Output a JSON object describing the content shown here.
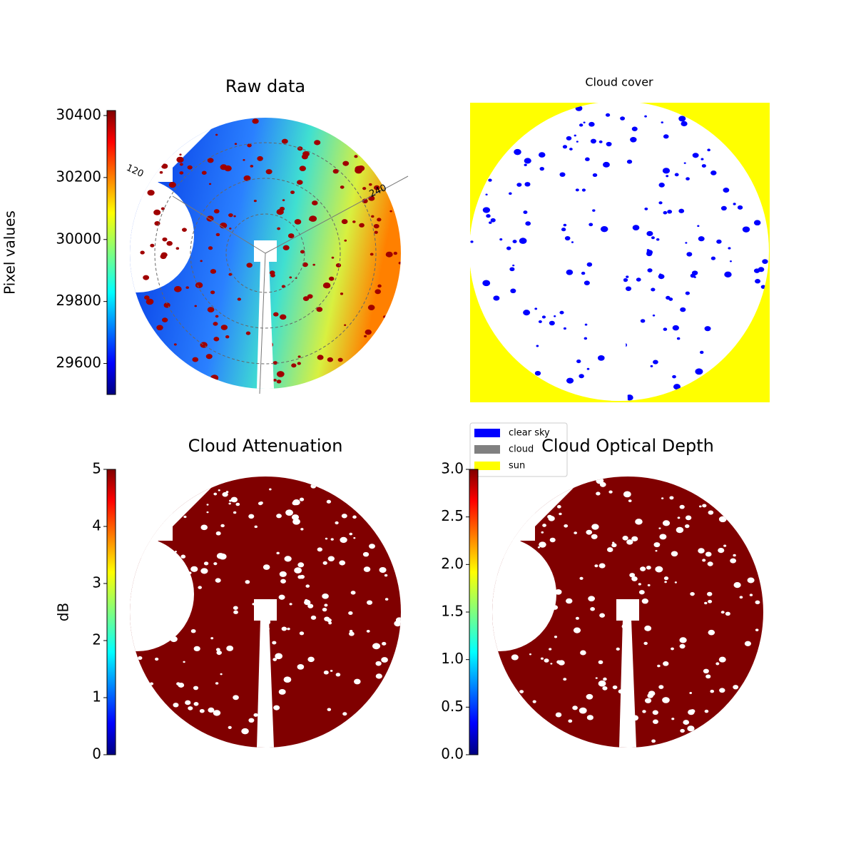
{
  "chart_data": [
    {
      "type": "image",
      "title": "Raw data",
      "colormap": "jet",
      "colorbar_label": "Pixel values",
      "clim": [
        29500,
        30416
      ],
      "cticks": [
        29600,
        29800,
        30000,
        30200,
        30400
      ],
      "annotations": [
        "120",
        "240"
      ]
    },
    {
      "type": "mask",
      "title": "Cloud cover",
      "legend_entries": [
        {
          "name": "clear sky",
          "color": "#0000ff"
        },
        {
          "name": "cloud",
          "color": "#808080"
        },
        {
          "name": "sun",
          "color": "#ffff00"
        }
      ]
    },
    {
      "type": "image",
      "title": "Cloud Attenuation",
      "colormap": "jet",
      "colorbar_label": "dB",
      "clim": [
        0,
        5
      ],
      "cticks": [
        0,
        1,
        2,
        3,
        4,
        5
      ],
      "color": "#800000"
    },
    {
      "type": "image",
      "title": "Cloud Optical Depth",
      "colormap": "jet",
      "clim": [
        0,
        3
      ],
      "cticks": [
        {
          "value": 0,
          "label": "0.0"
        },
        {
          "value": 0.5,
          "label": "0.5"
        },
        {
          "value": 1,
          "label": "1.0"
        },
        {
          "value": 1.5,
          "label": "1.5"
        },
        {
          "value": 2,
          "label": "2.0"
        },
        {
          "value": 2.5,
          "label": "2.5"
        },
        {
          "value": 3,
          "label": "3.0"
        }
      ],
      "color": "#800000"
    }
  ]
}
